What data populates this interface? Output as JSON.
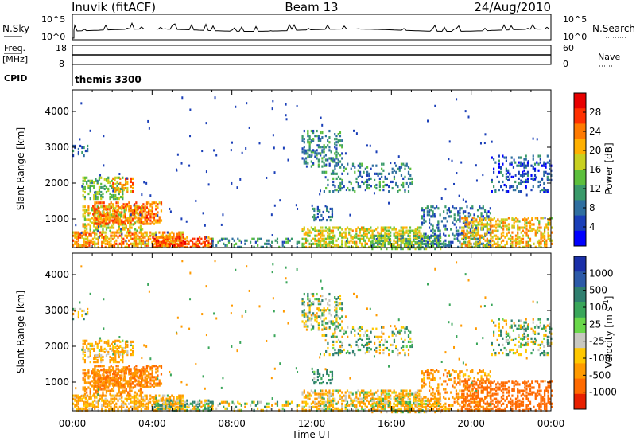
{
  "header": {
    "station": "Inuvik (fitACF)",
    "beam": "Beam 13",
    "date": "24/Aug/2010"
  },
  "summary": {
    "nsky_label": "N.Sky",
    "nsky_top": "10^5",
    "nsky_bottom": "10^0",
    "nsearch_label": "N.Search",
    "nsearch_top": "10^5",
    "nsearch_bottom": "10^0",
    "freq_label": "Freq.",
    "freq_unit": "[MHz]",
    "freq_ticks": [
      "18",
      "8"
    ],
    "nave_label": "Nave",
    "nave_ticks": [
      "60",
      "0"
    ],
    "cpid_label": "CPID",
    "cpid_value": "themis 3300"
  },
  "chart_data": [
    {
      "type": "heatmap",
      "name": "power",
      "ylabel": "Slant Range [km]",
      "xlabel": "",
      "xlim": [
        0,
        24
      ],
      "ylim": [
        200,
        4600
      ],
      "yticks": [
        1000,
        2000,
        3000,
        4000
      ],
      "colorbar": {
        "label": "Power [dB]",
        "ticks": [
          "28",
          "24",
          "20",
          "16",
          "12",
          "8",
          "4"
        ],
        "colors": [
          "#0000ff",
          "#1a3fb8",
          "#2f6fa0",
          "#3a9a6a",
          "#5cbf3c",
          "#c8d020",
          "#ffb000",
          "#ff7a00",
          "#ff3000",
          "#e80000"
        ]
      }
    },
    {
      "type": "heatmap",
      "name": "velocity",
      "ylabel": "Slant Range [km]",
      "xlabel": "Time UT",
      "xlim": [
        0,
        24
      ],
      "ylim": [
        200,
        4600
      ],
      "yticks": [
        1000,
        2000,
        3000,
        4000
      ],
      "xticks": [
        "00:00",
        "04:00",
        "08:00",
        "12:00",
        "16:00",
        "20:00",
        "00:00"
      ],
      "colorbar": {
        "label": "Velocity [m s^-1]",
        "ticks": [
          "1000",
          "500",
          "100",
          "25",
          "-25",
          "-100",
          "-500",
          "-1000"
        ],
        "colors": [
          "#1a2fa8",
          "#2c5aa8",
          "#2f7f6f",
          "#3aa65a",
          "#6ad84a",
          "#c8c8c0",
          "#ffc800",
          "#ff9a00",
          "#ff6a00",
          "#e82000"
        ]
      }
    }
  ],
  "echo_regions": [
    {
      "t0": 0.0,
      "t1": 5.5,
      "r0": 250,
      "r1": 700,
      "p": 0.55,
      "power": 22,
      "vel": -150
    },
    {
      "t0": 0.5,
      "t1": 3.5,
      "r0": 700,
      "r1": 1400,
      "p": 0.4,
      "power": 18,
      "vel": -250
    },
    {
      "t0": 1.0,
      "t1": 4.5,
      "r0": 900,
      "r1": 1500,
      "p": 0.45,
      "power": 24,
      "vel": -300
    },
    {
      "t0": 0.5,
      "t1": 2.5,
      "r0": 1600,
      "r1": 2200,
      "p": 0.35,
      "power": 14,
      "vel": -120
    },
    {
      "t0": 2.0,
      "t1": 3.0,
      "r0": 1800,
      "r1": 2200,
      "p": 0.45,
      "power": 22,
      "vel": -80
    },
    {
      "t0": 0.0,
      "t1": 0.8,
      "r0": 2800,
      "r1": 3100,
      "p": 0.25,
      "power": 8,
      "vel": 0
    },
    {
      "t0": 4.0,
      "t1": 7.0,
      "r0": 250,
      "r1": 550,
      "p": 0.45,
      "power": 26,
      "vel": 10
    },
    {
      "t0": 7.0,
      "t1": 11.5,
      "r0": 250,
      "r1": 500,
      "p": 0.22,
      "power": 10,
      "vel": -20
    },
    {
      "t0": 11.5,
      "t1": 17.5,
      "r0": 250,
      "r1": 800,
      "p": 0.45,
      "power": 18,
      "vel": -80
    },
    {
      "t0": 11.5,
      "t1": 13.5,
      "r0": 2500,
      "r1": 3500,
      "p": 0.3,
      "power": 10,
      "vel": 20
    },
    {
      "t0": 12.5,
      "t1": 17.0,
      "r0": 1800,
      "r1": 2600,
      "p": 0.2,
      "power": 10,
      "vel": 20
    },
    {
      "t0": 12.0,
      "t1": 13.0,
      "r0": 1000,
      "r1": 1400,
      "p": 0.3,
      "power": 8,
      "vel": 150
    },
    {
      "t0": 15.0,
      "t1": 18.5,
      "r0": 200,
      "r1": 600,
      "p": 0.5,
      "power": 14,
      "vel": -60
    },
    {
      "t0": 17.5,
      "t1": 21.0,
      "r0": 250,
      "r1": 1400,
      "p": 0.25,
      "power": 8,
      "vel": -200
    },
    {
      "t0": 19.5,
      "t1": 24.0,
      "r0": 250,
      "r1": 1100,
      "p": 0.4,
      "power": 20,
      "vel": -500
    },
    {
      "t0": 21.0,
      "t1": 24.0,
      "r0": 1800,
      "r1": 2800,
      "p": 0.2,
      "power": 6,
      "vel": 20
    }
  ]
}
